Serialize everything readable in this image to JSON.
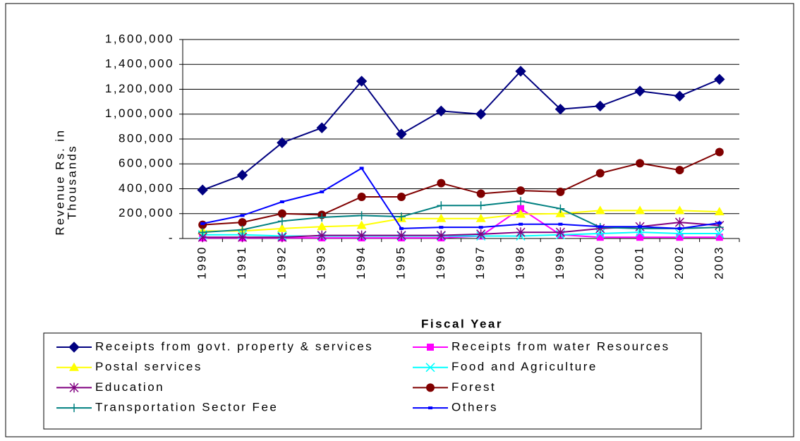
{
  "chart_data": {
    "type": "line",
    "y_label": [
      "Revenue Rs. in",
      "Thousands"
    ],
    "x_label": "Fiscal Year",
    "categories": [
      "1990",
      "1991",
      "1992",
      "1993",
      "1994",
      "1995",
      "1996",
      "1997",
      "1998",
      "1999",
      "2000",
      "2001",
      "2002",
      "2003"
    ],
    "ylim": [
      0,
      1600000
    ],
    "yticks": [
      {
        "value": 0,
        "label": "-"
      },
      {
        "value": 200000,
        "label": "200,000"
      },
      {
        "value": 400000,
        "label": "400,000"
      },
      {
        "value": 600000,
        "label": "600,000"
      },
      {
        "value": 800000,
        "label": "800,000"
      },
      {
        "value": 1000000,
        "label": "1,000,000"
      },
      {
        "value": 1200000,
        "label": "1,200,000"
      },
      {
        "value": 1400000,
        "label": "1,400,000"
      },
      {
        "value": 1600000,
        "label": "1,600,000"
      }
    ],
    "grid": true,
    "legend": "bottom",
    "series": [
      {
        "name": "Receipts from govt. property & services",
        "color": "#000080",
        "marker": "diamond",
        "values": [
          390000,
          510000,
          770000,
          890000,
          1265000,
          840000,
          1025000,
          1000000,
          1345000,
          1040000,
          1065000,
          1185000,
          1145000,
          1280000
        ]
      },
      {
        "name": "Receipts from water Resources",
        "color": "#ff00ff",
        "marker": "square",
        "values": [
          5000,
          5000,
          5000,
          5000,
          5000,
          5000,
          5000,
          20000,
          240000,
          30000,
          10000,
          10000,
          10000,
          10000
        ]
      },
      {
        "name": "Postal services",
        "color": "#ffff00",
        "marker": "triangle",
        "values": [
          60000,
          60000,
          80000,
          95000,
          105000,
          160000,
          160000,
          160000,
          195000,
          200000,
          225000,
          225000,
          225000,
          215000
        ]
      },
      {
        "name": "Food and Agriculture",
        "color": "#00ffff",
        "marker": "x",
        "values": [
          30000,
          30000,
          20000,
          20000,
          20000,
          20000,
          20000,
          20000,
          20000,
          30000,
          40000,
          50000,
          40000,
          40000
        ]
      },
      {
        "name": "Education",
        "color": "#800080",
        "marker": "asterisk",
        "values": [
          10000,
          10000,
          10000,
          25000,
          25000,
          25000,
          25000,
          35000,
          50000,
          50000,
          80000,
          95000,
          130000,
          105000
        ]
      },
      {
        "name": "Forest",
        "color": "#800000",
        "marker": "circle",
        "values": [
          110000,
          130000,
          200000,
          190000,
          335000,
          335000,
          445000,
          360000,
          385000,
          375000,
          525000,
          605000,
          550000,
          695000
        ]
      },
      {
        "name": "Transportation Sector Fee",
        "color": "#008080",
        "marker": "plus",
        "values": [
          50000,
          70000,
          140000,
          170000,
          185000,
          175000,
          265000,
          265000,
          300000,
          240000,
          90000,
          80000,
          80000,
          90000
        ]
      },
      {
        "name": "Others",
        "color": "#0000ff",
        "marker": "dash",
        "values": [
          120000,
          185000,
          295000,
          375000,
          565000,
          80000,
          90000,
          90000,
          115000,
          115000,
          95000,
          95000,
          80000,
          125000
        ]
      }
    ]
  }
}
